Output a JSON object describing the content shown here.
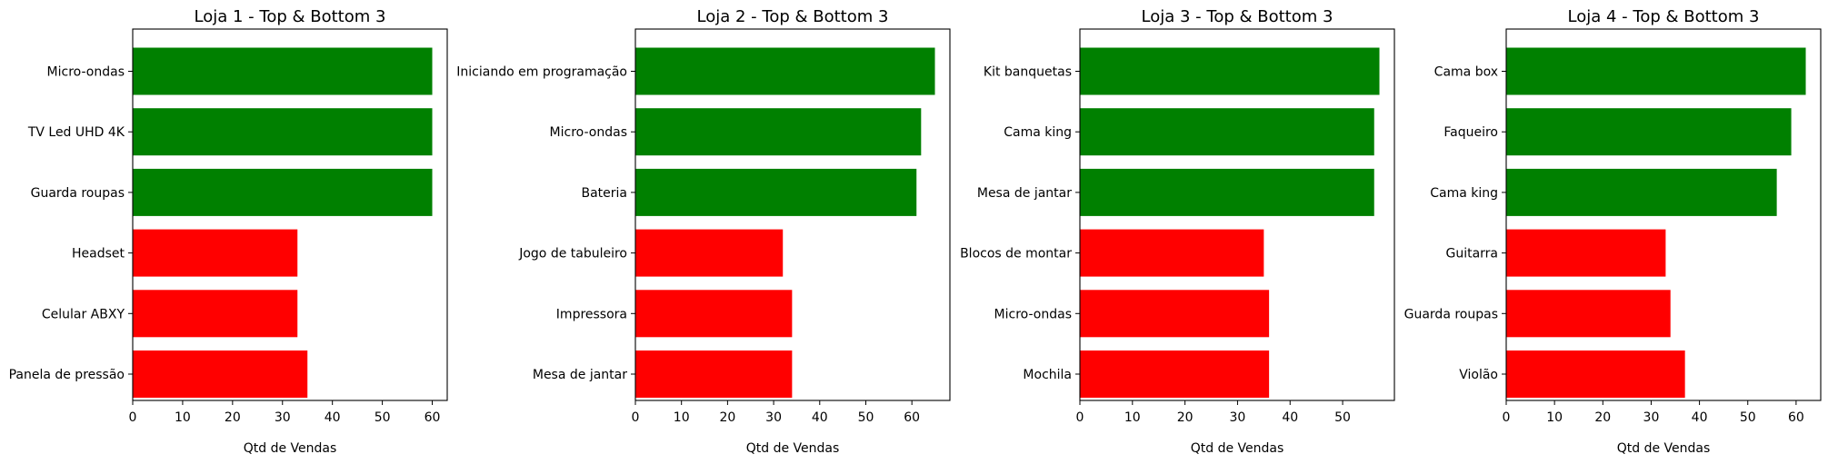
{
  "colors": {
    "top": "#008000",
    "bottom": "#ff0000"
  },
  "chart_data": [
    {
      "type": "bar",
      "orientation": "horizontal",
      "title": "Loja 1 - Top & Bottom 3",
      "xlabel": "Qtd de Vendas",
      "xlim": [
        0,
        63
      ],
      "xticks": [
        0,
        10,
        20,
        30,
        40,
        50,
        60
      ],
      "categories": [
        "Micro-ondas",
        "TV Led UHD 4K",
        "Guarda roupas",
        "Headset",
        "Celular ABXY",
        "Panela de pressão"
      ],
      "values": [
        60,
        60,
        60,
        33,
        33,
        35
      ],
      "groups": [
        "top",
        "top",
        "top",
        "bottom",
        "bottom",
        "bottom"
      ]
    },
    {
      "type": "bar",
      "orientation": "horizontal",
      "title": "Loja 2 - Top & Bottom 3",
      "xlabel": "Qtd de Vendas",
      "xlim": [
        0,
        68.25
      ],
      "xticks": [
        0,
        10,
        20,
        30,
        40,
        50,
        60
      ],
      "categories": [
        "Iniciando em programação",
        "Micro-ondas",
        "Bateria",
        "Jogo de tabuleiro",
        "Impressora",
        "Mesa de jantar"
      ],
      "values": [
        65,
        62,
        61,
        32,
        34,
        34
      ],
      "groups": [
        "top",
        "top",
        "top",
        "bottom",
        "bottom",
        "bottom"
      ]
    },
    {
      "type": "bar",
      "orientation": "horizontal",
      "title": "Loja 3 - Top & Bottom 3",
      "xlabel": "Qtd de Vendas",
      "xlim": [
        0,
        59.85
      ],
      "xticks": [
        0,
        10,
        20,
        30,
        40,
        50
      ],
      "categories": [
        "Kit banquetas",
        "Cama king",
        "Mesa de jantar",
        "Blocos de montar",
        "Micro-ondas",
        "Mochila"
      ],
      "values": [
        57,
        56,
        56,
        35,
        36,
        36
      ],
      "groups": [
        "top",
        "top",
        "top",
        "bottom",
        "bottom",
        "bottom"
      ]
    },
    {
      "type": "bar",
      "orientation": "horizontal",
      "title": "Loja 4 - Top & Bottom 3",
      "xlabel": "Qtd de Vendas",
      "xlim": [
        0,
        65.1
      ],
      "xticks": [
        0,
        10,
        20,
        30,
        40,
        50,
        60
      ],
      "categories": [
        "Cama box",
        "Faqueiro",
        "Cama king",
        "Guitarra",
        "Guarda roupas",
        "Violão"
      ],
      "values": [
        62,
        59,
        56,
        33,
        34,
        37
      ],
      "groups": [
        "top",
        "top",
        "top",
        "bottom",
        "bottom",
        "bottom"
      ]
    }
  ]
}
